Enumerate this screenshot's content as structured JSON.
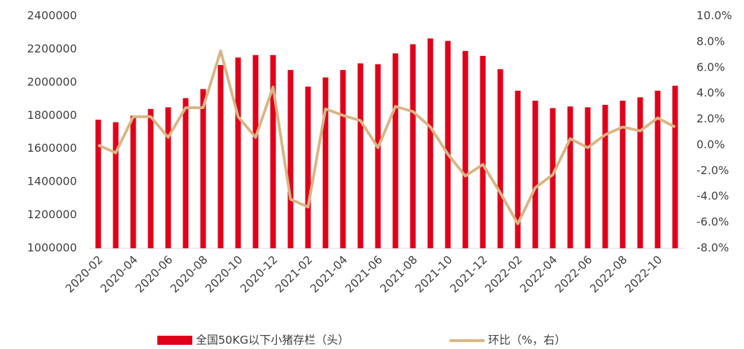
{
  "chart_data": {
    "type": "bar_line",
    "categories": [
      "2020-02",
      null,
      "2020-04",
      null,
      "2020-06",
      null,
      "2020-08",
      null,
      "2020-10",
      null,
      "2020-12",
      null,
      "2021-02",
      null,
      "2021-04",
      null,
      "2021-06",
      null,
      "2021-08",
      null,
      "2021-10",
      null,
      "2021-12",
      null,
      "2022-02",
      null,
      "2022-04",
      null,
      "2022-06",
      null,
      "2022-08",
      null,
      "2022-10",
      null
    ],
    "series": [
      {
        "name": "全国50KG以下小猪存栏（头）",
        "color": "#e00019",
        "type": "bar",
        "values": [
          1775000,
          1760000,
          1800000,
          1840000,
          1850000,
          1905000,
          1960000,
          2105000,
          2150000,
          2165000,
          2165000,
          2075000,
          1975000,
          2030000,
          2075000,
          2115000,
          2110000,
          2175000,
          2230000,
          2265000,
          2250000,
          2190000,
          2160000,
          2080000,
          1950000,
          1890000,
          1845000,
          1855000,
          1850000,
          1865000,
          1890000,
          1910000,
          1950000,
          1980000
        ]
      },
      {
        "name": "环比（%，右）",
        "color": "#d9b584",
        "type": "line",
        "axis": "y2",
        "values": [
          0.0,
          -0.6,
          2.2,
          2.2,
          0.6,
          2.9,
          2.9,
          7.3,
          2.2,
          0.6,
          4.5,
          -4.2,
          -4.8,
          2.8,
          2.3,
          1.9,
          -0.2,
          3.0,
          2.6,
          1.4,
          -0.7,
          -2.4,
          -1.5,
          -3.7,
          -6.1,
          -3.3,
          -2.3,
          0.5,
          -0.2,
          0.8,
          1.4,
          1.1,
          2.1,
          1.4
        ]
      }
    ],
    "ylim": [
      1000000,
      2400000
    ],
    "yticks": [
      1000000,
      1200000,
      1400000,
      1600000,
      1800000,
      2000000,
      2200000,
      2400000
    ],
    "y2lim": [
      -8,
      10
    ],
    "y2ticks": [
      {
        "value": -8,
        "label": "-8.0%"
      },
      {
        "value": -6,
        "label": "-6.0%"
      },
      {
        "value": -4,
        "label": "-4.0%"
      },
      {
        "value": -2,
        "label": "-2.0%"
      },
      {
        "value": 0,
        "label": "0.0%"
      },
      {
        "value": 2,
        "label": "2.0%"
      },
      {
        "value": 4,
        "label": "4.0%"
      },
      {
        "value": 6,
        "label": "6.0%"
      },
      {
        "value": 8,
        "label": "8.0%"
      },
      {
        "value": 10,
        "label": "10.0%"
      }
    ],
    "grid": false,
    "legend": "bottom"
  }
}
